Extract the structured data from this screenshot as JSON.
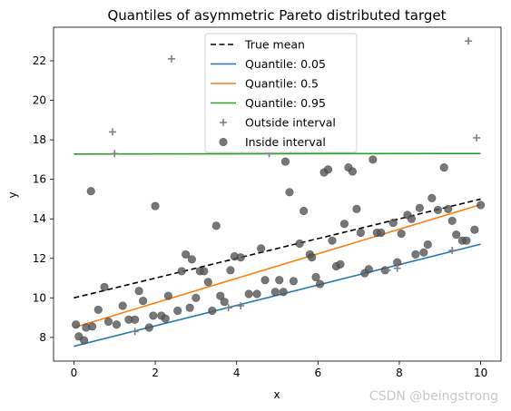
{
  "chart_data": {
    "type": "scatter",
    "title": "Quantiles of asymmetric Pareto distributed target",
    "xlabel": "x",
    "ylabel": "y",
    "xlim": [
      -0.5,
      10.5
    ],
    "ylim": [
      6.8,
      23.7
    ],
    "xticks": [
      0,
      2,
      4,
      6,
      8,
      10
    ],
    "yticks": [
      8,
      10,
      12,
      14,
      16,
      18,
      20,
      22
    ],
    "grid": false,
    "legend_position": "top-center",
    "lines": [
      {
        "name": "True mean",
        "color": "#000000",
        "dash": true,
        "x": [
          0,
          10
        ],
        "y": [
          10.0,
          15.0
        ]
      },
      {
        "name": "Quantile: 0.05",
        "color": "#1f77b4",
        "dash": false,
        "x": [
          0,
          10
        ],
        "y": [
          7.55,
          12.72
        ]
      },
      {
        "name": "Quantile: 0.5",
        "color": "#ff7f0e",
        "dash": false,
        "x": [
          0,
          10
        ],
        "y": [
          8.5,
          14.72
        ]
      },
      {
        "name": "Quantile: 0.95",
        "color": "#2ca02c",
        "dash": false,
        "x": [
          0,
          10
        ],
        "y": [
          17.28,
          17.31
        ]
      }
    ],
    "outside": {
      "name": "Outside interval",
      "color": "#808080",
      "points": [
        [
          0.95,
          18.4
        ],
        [
          1.0,
          17.3
        ],
        [
          2.4,
          22.1
        ],
        [
          1.5,
          8.3
        ],
        [
          3.8,
          9.5
        ],
        [
          4.1,
          9.6
        ],
        [
          4.8,
          17.3
        ],
        [
          7.7,
          11.4
        ],
        [
          7.95,
          11.5
        ],
        [
          9.3,
          12.4
        ],
        [
          9.7,
          23.0
        ],
        [
          9.9,
          18.1
        ]
      ]
    },
    "inside": {
      "name": "Inside interval",
      "color": "#555555",
      "points": [
        [
          0.05,
          8.65
        ],
        [
          0.12,
          8.05
        ],
        [
          0.25,
          7.85
        ],
        [
          0.3,
          8.5
        ],
        [
          0.45,
          8.55
        ],
        [
          0.42,
          15.4
        ],
        [
          0.6,
          9.4
        ],
        [
          0.75,
          10.55
        ],
        [
          0.85,
          8.8
        ],
        [
          1.05,
          8.65
        ],
        [
          1.2,
          9.6
        ],
        [
          1.35,
          8.9
        ],
        [
          1.5,
          8.9
        ],
        [
          1.6,
          10.35
        ],
        [
          1.7,
          9.85
        ],
        [
          1.85,
          8.5
        ],
        [
          1.95,
          9.1
        ],
        [
          2.0,
          14.65
        ],
        [
          2.15,
          9.1
        ],
        [
          2.25,
          8.95
        ],
        [
          2.32,
          10.1
        ],
        [
          2.55,
          9.35
        ],
        [
          2.65,
          11.35
        ],
        [
          2.75,
          12.2
        ],
        [
          2.85,
          9.5
        ],
        [
          2.9,
          11.95
        ],
        [
          3.0,
          10.0
        ],
        [
          3.1,
          11.35
        ],
        [
          3.2,
          11.35
        ],
        [
          3.3,
          10.8
        ],
        [
          3.4,
          9.35
        ],
        [
          3.5,
          13.65
        ],
        [
          3.6,
          10.1
        ],
        [
          3.7,
          9.8
        ],
        [
          3.85,
          11.4
        ],
        [
          3.95,
          12.1
        ],
        [
          4.1,
          12.05
        ],
        [
          4.3,
          10.2
        ],
        [
          4.5,
          10.2
        ],
        [
          4.6,
          12.5
        ],
        [
          4.7,
          10.9
        ],
        [
          4.95,
          10.3
        ],
        [
          5.05,
          10.9
        ],
        [
          5.15,
          10.3
        ],
        [
          5.2,
          16.9
        ],
        [
          5.3,
          15.35
        ],
        [
          5.4,
          10.85
        ],
        [
          5.55,
          12.75
        ],
        [
          5.65,
          14.4
        ],
        [
          5.8,
          12.2
        ],
        [
          5.85,
          12.05
        ],
        [
          5.95,
          11.05
        ],
        [
          6.05,
          10.7
        ],
        [
          6.15,
          16.35
        ],
        [
          6.25,
          16.5
        ],
        [
          6.35,
          12.9
        ],
        [
          6.45,
          11.6
        ],
        [
          6.55,
          11.7
        ],
        [
          6.65,
          13.75
        ],
        [
          6.75,
          16.6
        ],
        [
          6.85,
          16.4
        ],
        [
          6.95,
          14.5
        ],
        [
          7.05,
          13.3
        ],
        [
          7.15,
          11.25
        ],
        [
          7.25,
          11.45
        ],
        [
          7.35,
          17.0
        ],
        [
          7.45,
          13.3
        ],
        [
          7.55,
          13.3
        ],
        [
          7.65,
          11.4
        ],
        [
          7.85,
          13.8
        ],
        [
          7.95,
          11.8
        ],
        [
          8.05,
          13.25
        ],
        [
          8.2,
          14.2
        ],
        [
          8.3,
          14.0
        ],
        [
          8.4,
          12.2
        ],
        [
          8.5,
          14.55
        ],
        [
          8.6,
          12.3
        ],
        [
          8.7,
          12.7
        ],
        [
          8.8,
          15.05
        ],
        [
          8.95,
          14.45
        ],
        [
          9.1,
          16.6
        ],
        [
          9.2,
          14.5
        ],
        [
          9.3,
          13.9
        ],
        [
          9.4,
          13.2
        ],
        [
          9.55,
          12.9
        ],
        [
          9.65,
          12.9
        ],
        [
          9.85,
          13.45
        ],
        [
          10.0,
          14.7
        ]
      ]
    }
  },
  "watermark": "CSDN @beingstrong"
}
